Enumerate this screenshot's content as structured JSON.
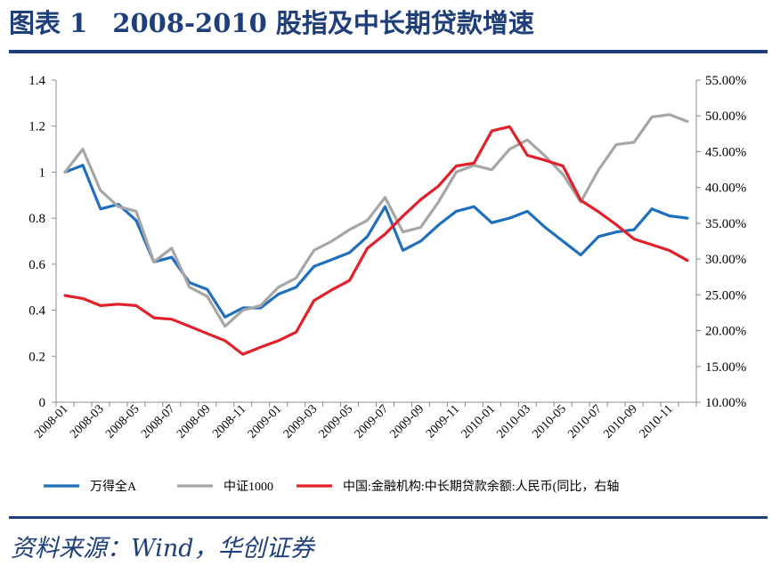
{
  "figure": {
    "number": "图表 1",
    "title": "2008-2010 股指及中长期贷款增速",
    "source": "资料来源：Wind，华创证券"
  },
  "colors": {
    "title": "#1f3f7a",
    "series_blue": "#1f6fbd",
    "series_gray": "#a6a6a6",
    "series_red": "#e2202a",
    "axis": "#8c8c8c"
  },
  "chart_data": {
    "type": "line",
    "x": [
      "2008-01",
      "2008-02",
      "2008-03",
      "2008-04",
      "2008-05",
      "2008-06",
      "2008-07",
      "2008-08",
      "2008-09",
      "2008-10",
      "2008-11",
      "2008-12",
      "2009-01",
      "2009-02",
      "2009-03",
      "2009-04",
      "2009-05",
      "2009-06",
      "2009-07",
      "2009-08",
      "2009-09",
      "2009-10",
      "2009-11",
      "2009-12",
      "2010-01",
      "2010-02",
      "2010-03",
      "2010-04",
      "2010-05",
      "2010-06",
      "2010-07",
      "2010-08",
      "2010-09",
      "2010-10",
      "2010-11",
      "2010-12"
    ],
    "x_tick_labels": [
      "2008-01",
      "2008-03",
      "2008-05",
      "2008-07",
      "2008-09",
      "2008-11",
      "2009-01",
      "2009-03",
      "2009-05",
      "2009-07",
      "2009-09",
      "2009-11",
      "2010-01",
      "2010-03",
      "2010-05",
      "2010-07",
      "2010-09",
      "2010-11"
    ],
    "ylim_left": [
      0,
      1.4
    ],
    "yticks_left": [
      "0",
      "0.2",
      "0.4",
      "0.6",
      "0.8",
      "1",
      "1.2",
      "1.4"
    ],
    "ylim_right": [
      10,
      55
    ],
    "yticks_right": [
      "10.00%",
      "15.00%",
      "20.00%",
      "25.00%",
      "30.00%",
      "35.00%",
      "40.00%",
      "45.00%",
      "50.00%",
      "55.00%"
    ],
    "grid": false,
    "legend_position": "bottom",
    "series": [
      {
        "name": "万得全A",
        "axis": "left",
        "color": "#1f6fbd",
        "values": [
          1.0,
          1.03,
          0.84,
          0.86,
          0.79,
          0.61,
          0.63,
          0.52,
          0.49,
          0.37,
          0.41,
          0.41,
          0.47,
          0.5,
          0.59,
          0.62,
          0.65,
          0.72,
          0.85,
          0.66,
          0.7,
          0.77,
          0.83,
          0.85,
          0.78,
          0.8,
          0.83,
          0.76,
          0.7,
          0.64,
          0.72,
          0.74,
          0.75,
          0.84,
          0.81,
          0.8
        ]
      },
      {
        "name": "中证1000",
        "axis": "left",
        "color": "#a6a6a6",
        "values": [
          1.0,
          1.1,
          0.92,
          0.85,
          0.83,
          0.61,
          0.67,
          0.5,
          0.46,
          0.33,
          0.4,
          0.42,
          0.5,
          0.54,
          0.66,
          0.7,
          0.75,
          0.79,
          0.89,
          0.74,
          0.76,
          0.87,
          1.0,
          1.03,
          1.01,
          1.1,
          1.14,
          1.07,
          0.99,
          0.87,
          1.01,
          1.12,
          1.13,
          1.24,
          1.25,
          1.22
        ]
      },
      {
        "name": "中国:金融机构:中长期贷款余额:人民币(同比，右轴",
        "axis": "right",
        "color": "#e2202a",
        "values": [
          24.9,
          24.5,
          23.5,
          23.7,
          23.5,
          21.8,
          21.6,
          20.6,
          19.6,
          18.6,
          16.7,
          17.7,
          18.6,
          19.8,
          24.2,
          25.7,
          27.0,
          31.5,
          33.5,
          36.0,
          38.3,
          40.2,
          43.0,
          43.4,
          47.9,
          48.5,
          44.5,
          43.8,
          43.0,
          38.2,
          36.6,
          34.8,
          32.8,
          32.0,
          31.2,
          29.8
        ]
      }
    ]
  }
}
